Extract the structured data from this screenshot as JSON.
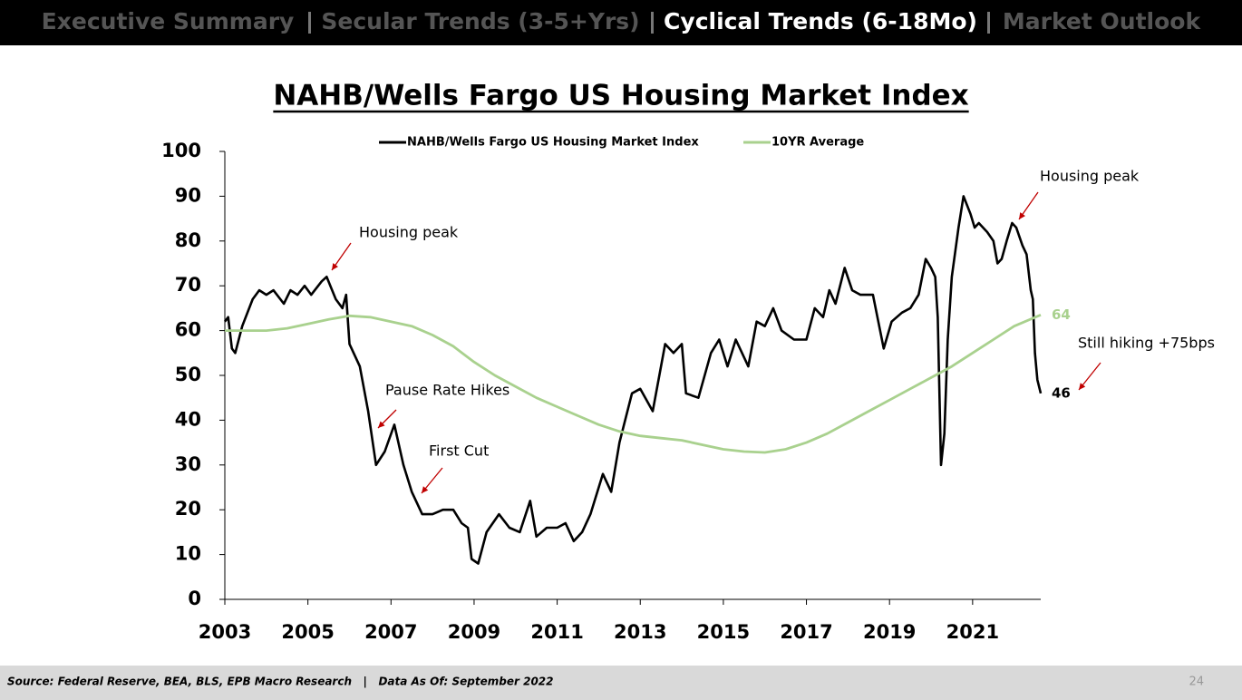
{
  "nav": [
    "Executive Summary",
    "Secular Trends (3-5+Yrs)",
    "Cyclical Trends (6-18Mo)",
    "Market Outlook"
  ],
  "nav_active": 2,
  "chart_data": {
    "type": "line",
    "title": "NAHB/Wells Fargo US Housing Market Index",
    "xlim": [
      2003,
      2022.64
    ],
    "xticks": [
      2003,
      2005,
      2007,
      2009,
      2011,
      2013,
      2015,
      2017,
      2019,
      2021
    ],
    "ylim": [
      0,
      100
    ],
    "yticks": [
      0,
      10,
      20,
      30,
      40,
      50,
      60,
      70,
      80,
      90,
      100
    ],
    "legend": "top",
    "series": [
      {
        "name": "NAHB/Wells Fargo US Housing Market Index",
        "color": "#000000",
        "end_label": "46",
        "x": [
          2003.0,
          2003.08,
          2003.17,
          2003.25,
          2003.42,
          2003.67,
          2003.83,
          2004.0,
          2004.17,
          2004.42,
          2004.58,
          2004.75,
          2004.92,
          2005.08,
          2005.33,
          2005.45,
          2005.67,
          2005.83,
          2005.92,
          2006.0,
          2006.25,
          2006.45,
          2006.64,
          2006.85,
          2007.08,
          2007.3,
          2007.5,
          2007.75,
          2008.0,
          2008.25,
          2008.5,
          2008.7,
          2008.85,
          2008.94,
          2009.1,
          2009.3,
          2009.6,
          2009.85,
          2010.1,
          2010.35,
          2010.5,
          2010.75,
          2011.0,
          2011.2,
          2011.4,
          2011.6,
          2011.8,
          2012.1,
          2012.3,
          2012.5,
          2012.8,
          2013.0,
          2013.3,
          2013.6,
          2013.8,
          2014.0,
          2014.1,
          2014.4,
          2014.7,
          2014.9,
          2015.1,
          2015.3,
          2015.6,
          2015.8,
          2016.0,
          2016.2,
          2016.4,
          2016.7,
          2017.0,
          2017.2,
          2017.4,
          2017.55,
          2017.7,
          2017.92,
          2018.1,
          2018.3,
          2018.6,
          2018.86,
          2019.05,
          2019.3,
          2019.5,
          2019.7,
          2019.87,
          2020.0,
          2020.1,
          2020.16,
          2020.24,
          2020.32,
          2020.4,
          2020.5,
          2020.66,
          2020.78,
          2020.95,
          2021.05,
          2021.15,
          2021.35,
          2021.5,
          2021.6,
          2021.7,
          2021.82,
          2021.95,
          2022.05,
          2022.2,
          2022.3,
          2022.4,
          2022.45,
          2022.5,
          2022.56,
          2022.64
        ],
        "values": [
          62,
          63,
          56,
          55,
          61,
          67,
          69,
          68,
          69,
          66,
          69,
          68,
          70,
          68,
          71,
          72,
          67,
          65,
          68,
          57,
          52,
          42,
          30,
          33,
          39,
          30,
          24,
          19,
          19,
          20,
          20,
          17,
          16,
          9,
          8,
          15,
          19,
          16,
          15,
          22,
          14,
          16,
          16,
          17,
          13,
          15,
          19,
          28,
          24,
          35,
          46,
          47,
          42,
          57,
          55,
          57,
          46,
          45,
          55,
          58,
          52,
          58,
          52,
          62,
          61,
          65,
          60,
          58,
          58,
          65,
          63,
          69,
          66,
          74,
          69,
          68,
          68,
          56,
          62,
          64,
          65,
          68,
          76,
          74,
          72,
          63,
          30,
          37,
          58,
          72,
          83,
          90,
          86,
          83,
          84,
          82,
          80,
          75,
          76,
          80,
          84,
          83,
          79,
          77,
          69,
          67,
          55,
          49,
          46
        ]
      },
      {
        "name": "10YR Average",
        "color": "#a9d18e",
        "end_label": "64",
        "x": [
          2003,
          2004,
          2004.5,
          2005,
          2005.5,
          2006,
          2006.5,
          2007,
          2007.5,
          2008,
          2008.5,
          2009,
          2009.5,
          2010,
          2010.5,
          2011,
          2011.5,
          2012,
          2012.5,
          2013,
          2013.5,
          2014,
          2014.5,
          2015,
          2015.5,
          2016,
          2016.5,
          2017,
          2017.5,
          2018,
          2018.5,
          2019,
          2019.5,
          2020,
          2020.5,
          2021,
          2021.5,
          2022,
          2022.64
        ],
        "values": [
          60,
          60,
          60.5,
          61.5,
          62.5,
          63.3,
          63,
          62,
          61,
          59,
          56.5,
          53,
          50,
          47.5,
          45,
          43,
          41,
          39,
          37.5,
          36.5,
          36,
          35.5,
          34.5,
          33.5,
          33,
          32.8,
          33.5,
          35,
          37,
          39.5,
          42,
          44.5,
          47,
          49.5,
          52,
          55,
          58,
          61,
          63.5
        ]
      }
    ],
    "annotations": [
      "Housing peak",
      "Pause Rate Hikes",
      "First Cut",
      "Housing peak",
      "Still hiking +75bps"
    ]
  },
  "footer": {
    "source": "Source: Federal Reserve, BEA, BLS, EPB Macro Research   |   Data As Of: September 2022",
    "page": 24
  }
}
